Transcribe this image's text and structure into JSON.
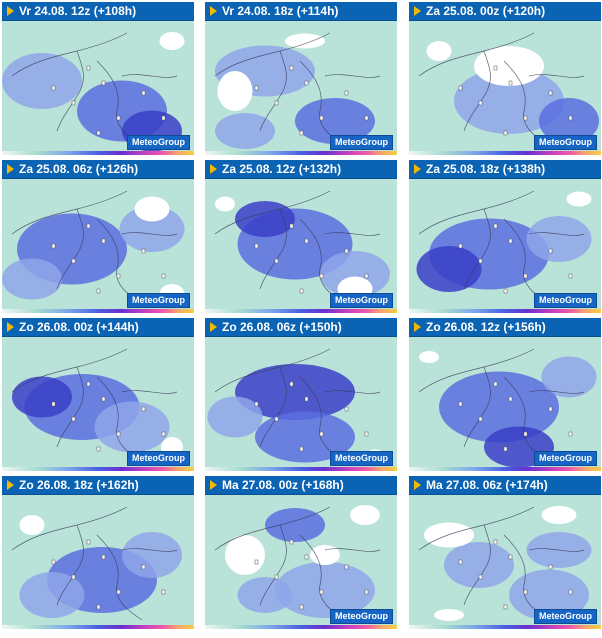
{
  "brand_label": "MeteoGroup",
  "panels": [
    {
      "label": "Vr 24.08. 12z (+108h)",
      "brand": true
    },
    {
      "label": "Vr 24.08. 18z (+114h)",
      "brand": true
    },
    {
      "label": "Za 25.08. 00z (+120h)",
      "brand": true
    },
    {
      "label": "Za 25.08. 06z (+126h)",
      "brand": true
    },
    {
      "label": "Za 25.08. 12z (+132h)",
      "brand": true
    },
    {
      "label": "Za 25.08. 18z (+138h)",
      "brand": true
    },
    {
      "label": "Zo 26.08. 00z (+144h)",
      "brand": true
    },
    {
      "label": "Zo 26.08. 06z (+150h)",
      "brand": true
    },
    {
      "label": "Zo 26.08. 12z (+156h)",
      "brand": true
    },
    {
      "label": "Zo 26.08. 18z (+162h)",
      "brand": false
    },
    {
      "label": "Ma 27.08. 00z (+168h)",
      "brand": true
    },
    {
      "label": "Ma 27.08. 06z (+174h)",
      "brand": true
    }
  ],
  "colors": {
    "header": "#0a63b3",
    "triangle": "#f5b800",
    "land_light": "#b9e3d8",
    "precip_light": "#8fa6ea",
    "precip_mid": "#5a6fe0",
    "precip_heavy": "#3b3fc8",
    "dry": "#ffffff"
  },
  "icons": {
    "header_marker": "yellow-triangle-icon"
  }
}
